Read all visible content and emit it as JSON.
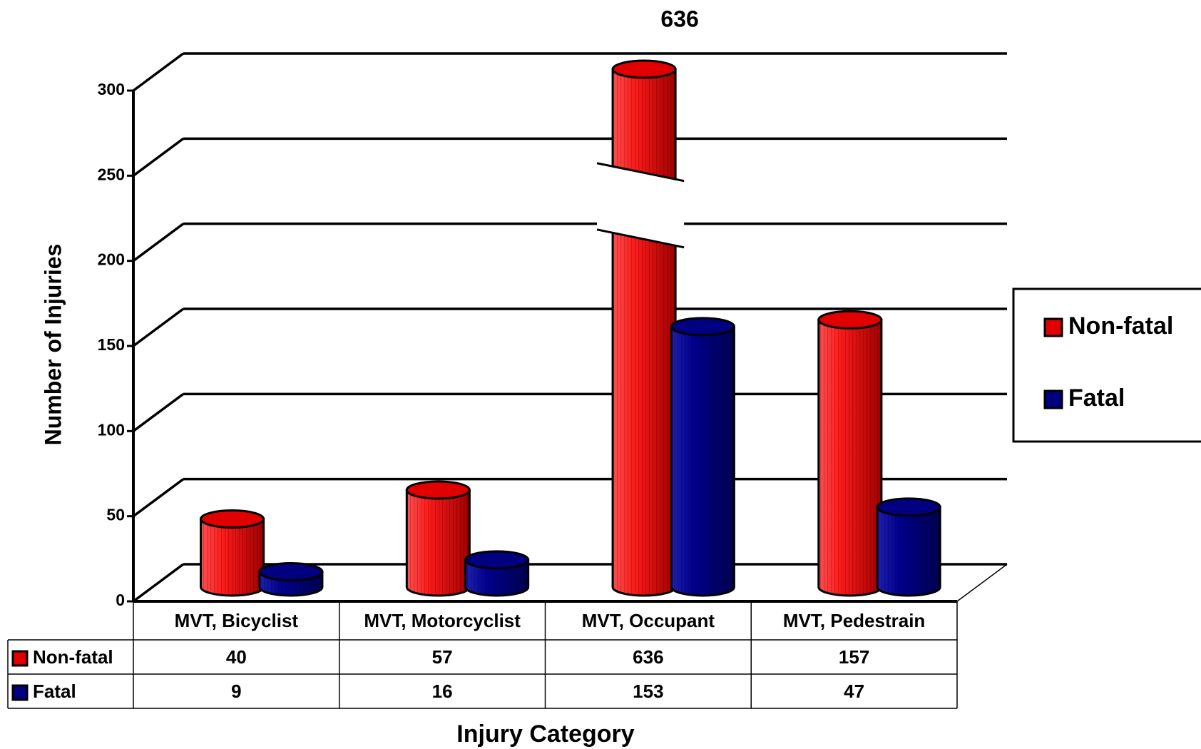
{
  "chart_data": {
    "type": "bar3d",
    "x_label": "Injury Category",
    "y_label": "Number of Injuries",
    "categories": [
      "MVT, Bicyclist",
      "MVT, Motorcyclist",
      "MVT, Occupant",
      "MVT, Pedestrain"
    ],
    "series": [
      {
        "name": "Non-fatal",
        "color": "#e00000",
        "values": [
          40,
          57,
          636,
          157
        ]
      },
      {
        "name": "Fatal",
        "color": "#000080",
        "values": [
          9,
          16,
          153,
          47
        ]
      }
    ],
    "ylim": [
      0,
      300
    ],
    "yticks": [
      0,
      50,
      100,
      150,
      200,
      250,
      300
    ],
    "grid": true,
    "legend": "right",
    "data_table": true
  }
}
